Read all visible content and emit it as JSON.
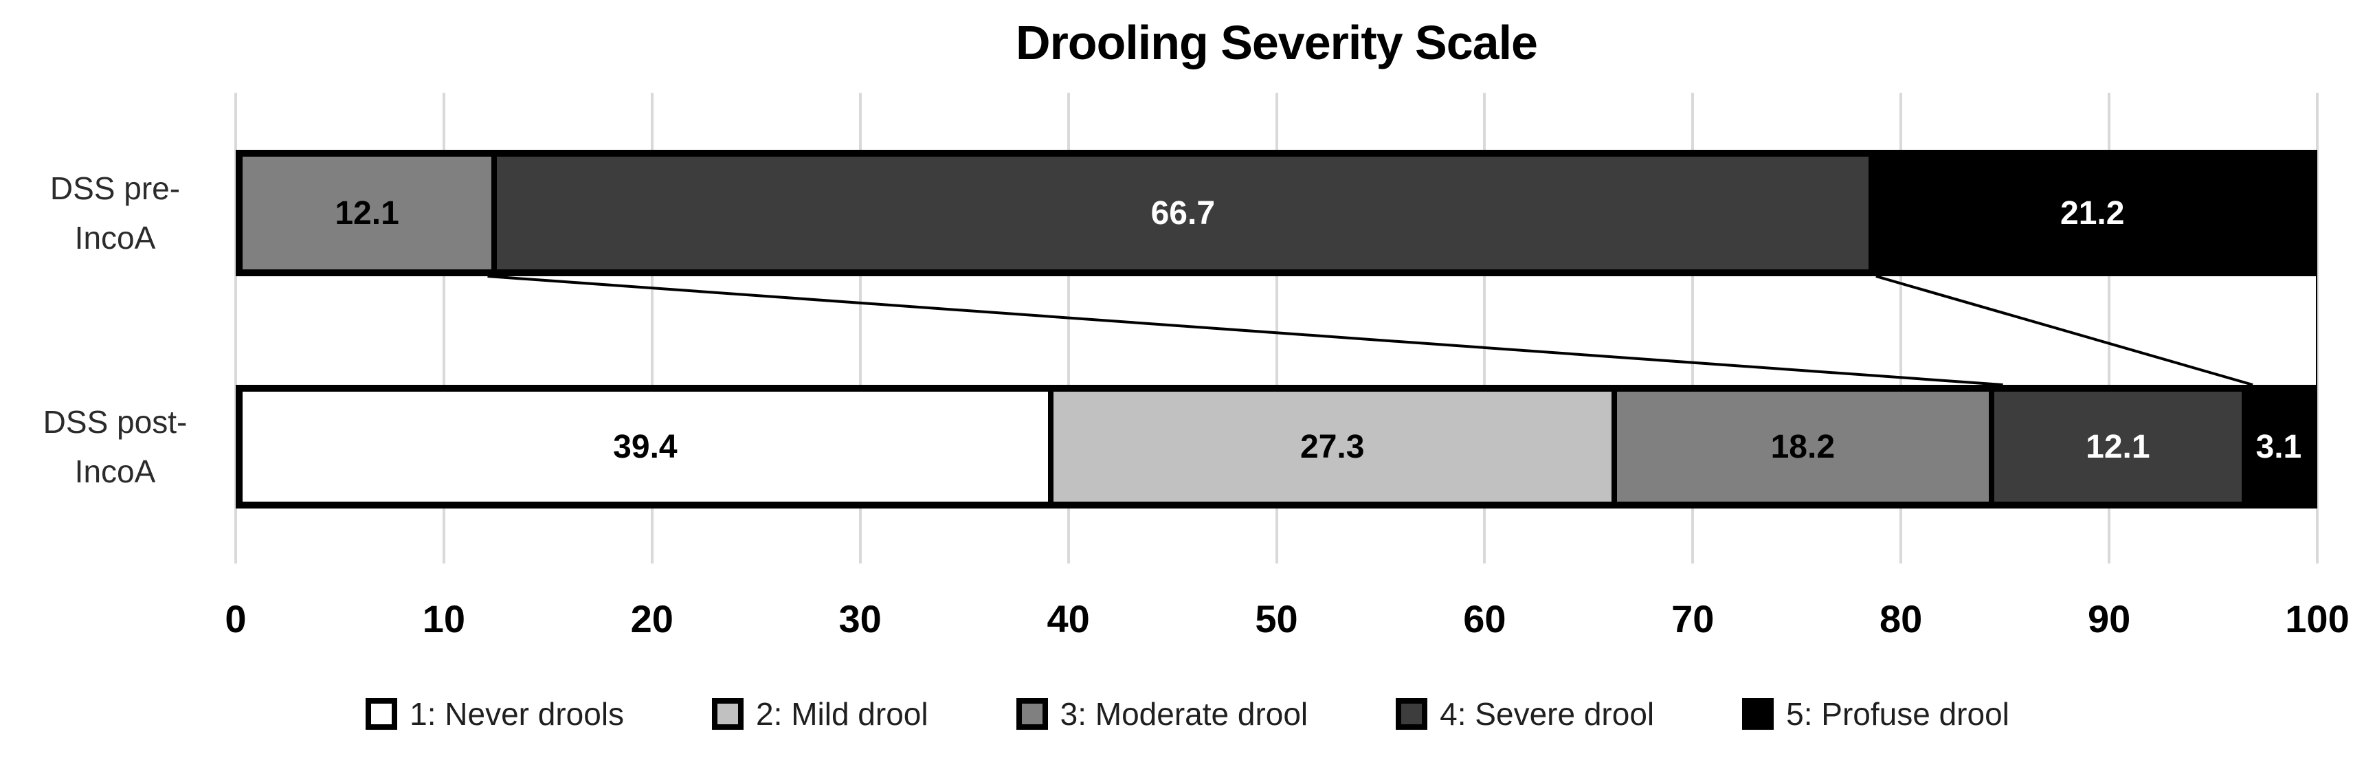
{
  "chart_data": {
    "type": "bar",
    "orientation": "horizontal",
    "stacked": true,
    "title": "Drooling Severity Scale",
    "categories": [
      {
        "label_lines": [
          "DSS pre-",
          "IncoA"
        ]
      },
      {
        "label_lines": [
          "DSS post-",
          "IncoA"
        ]
      }
    ],
    "series": [
      {
        "name": "1: Never drools",
        "color": "#ffffff",
        "label_color": "#000000",
        "values": [
          0,
          39.4
        ]
      },
      {
        "name": "2: Mild drool",
        "color": "#c1c1c1",
        "label_color": "#000000",
        "values": [
          0,
          27.3
        ]
      },
      {
        "name": "3: Moderate drool",
        "color": "#808080",
        "label_color": "#000000",
        "values": [
          12.1,
          18.2
        ]
      },
      {
        "name": "4: Severe drool",
        "color": "#3d3d3d",
        "label_color": "#ffffff",
        "values": [
          66.7,
          12.1
        ]
      },
      {
        "name": "5: Profuse drool",
        "color": "#000000",
        "label_color": "#ffffff",
        "values": [
          21.2,
          3.1
        ]
      }
    ],
    "xlim": [
      0,
      100
    ],
    "xticks": [
      0,
      10,
      20,
      30,
      40,
      50,
      60,
      70,
      80,
      90,
      100
    ],
    "grid": true,
    "gridline_color": "#d9d9d9",
    "legend_position": "bottom",
    "series_lines": [
      {
        "from_value": 12.1,
        "to_value": 84.9
      },
      {
        "from_value": 78.8,
        "to_value": 96.9
      },
      {
        "from_value": 100,
        "to_value": 100
      }
    ]
  }
}
